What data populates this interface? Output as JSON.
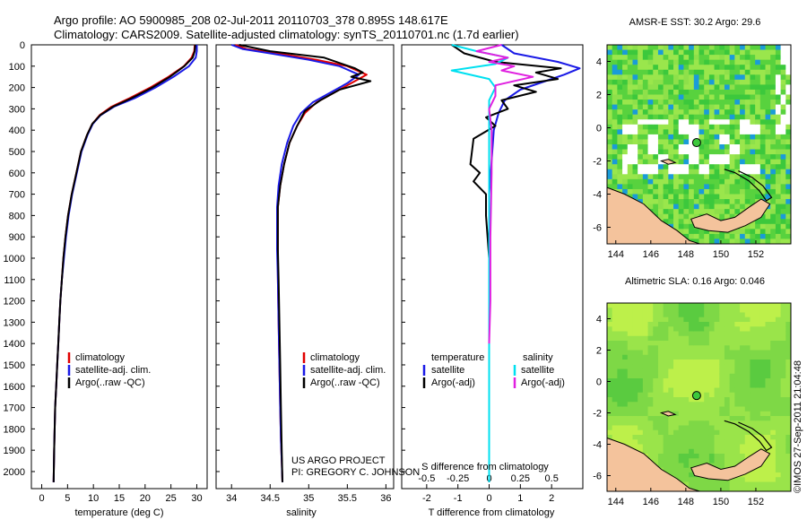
{
  "title": {
    "line1": "Argo profile: AO 5900985_208 02-Jul-2011 20110703_378 0.895S 148.617E",
    "line2": "Climatology: CARS2009. Satellite-adjusted climatology: synTS_20110701.nc (1.7d earlier)"
  },
  "colors": {
    "climatology": "#e00000",
    "satellite": "#1a1ae6",
    "argo": "#000000",
    "satellite_s": "#00e0f0",
    "argo_s": "#e020e0",
    "land": "#f4c39c"
  },
  "depth_axis": {
    "ylim": [
      2080,
      0
    ],
    "ticks": [
      "0",
      "100",
      "200",
      "300",
      "400",
      "500",
      "600",
      "700",
      "800",
      "900",
      "1000",
      "1100",
      "1200",
      "1300",
      "1400",
      "1500",
      "1600",
      "1700",
      "1800",
      "1900",
      "2000"
    ]
  },
  "chart_data": [
    {
      "type": "line",
      "xlabel": "temperature (deg C)",
      "xlim": [
        -2,
        32
      ],
      "xticks": [
        "0",
        "5",
        "10",
        "15",
        "20",
        "25",
        "30"
      ],
      "legend": [
        "climatology",
        "satellite-adj. clim.",
        "Argo(..raw -QC)"
      ],
      "series": [
        {
          "name": "climatology",
          "x": [
            29.6,
            29.5,
            29.0,
            27.5,
            24.5,
            21.0,
            17.0,
            13.5,
            11.2,
            9.8,
            8.8,
            7.6,
            6.7,
            5.8,
            5.1,
            4.6,
            4.2,
            3.9,
            3.6,
            3.4,
            3.2,
            3.0,
            2.8,
            2.6,
            2.4,
            2.3
          ],
          "y": [
            0,
            30,
            60,
            100,
            150,
            200,
            250,
            290,
            330,
            370,
            420,
            500,
            600,
            700,
            800,
            900,
            1000,
            1100,
            1200,
            1300,
            1400,
            1500,
            1600,
            1700,
            1900,
            2050
          ]
        },
        {
          "name": "satellite-adj. clim.",
          "x": [
            30.0,
            30.0,
            29.8,
            28.5,
            25.5,
            22.0,
            18.0,
            14.0,
            11.4,
            9.9,
            8.9,
            7.7,
            6.8,
            5.9,
            5.2,
            4.7,
            4.3,
            3.9,
            3.6,
            3.4,
            3.2,
            3.0,
            2.8,
            2.6,
            2.4,
            2.3
          ],
          "y": [
            0,
            30,
            60,
            100,
            150,
            200,
            250,
            290,
            330,
            370,
            420,
            500,
            600,
            700,
            800,
            900,
            1000,
            1100,
            1200,
            1300,
            1400,
            1500,
            1600,
            1700,
            1900,
            2050
          ]
        },
        {
          "name": "Argo(..raw -QC)",
          "x": [
            29.7,
            29.6,
            29.2,
            27.6,
            24.8,
            21.4,
            17.4,
            13.8,
            11.3,
            9.8,
            8.8,
            7.6,
            6.7,
            5.8,
            5.1,
            4.6,
            4.2,
            3.9,
            3.6,
            3.4,
            3.2,
            3.0,
            2.8,
            2.6,
            2.4,
            2.3
          ],
          "y": [
            0,
            30,
            60,
            100,
            150,
            200,
            250,
            290,
            330,
            370,
            420,
            500,
            600,
            700,
            800,
            900,
            1000,
            1100,
            1200,
            1300,
            1400,
            1500,
            1600,
            1700,
            1900,
            2050
          ]
        }
      ]
    },
    {
      "type": "line",
      "xlabel": "salinity",
      "xlim": [
        33.8,
        36.1
      ],
      "xticks": [
        "34",
        "34.5",
        "35",
        "35.5",
        "36"
      ],
      "legend": [
        "climatology",
        "satellite-adj. clim.",
        "Argo(..raw -QC)"
      ],
      "series": [
        {
          "name": "climatology",
          "x": [
            34.05,
            34.2,
            34.6,
            35.1,
            35.5,
            35.75,
            35.55,
            35.35,
            35.1,
            34.95,
            34.85,
            34.75,
            34.68,
            34.63,
            34.6,
            34.6,
            34.6,
            34.6,
            34.61,
            34.62,
            34.63,
            34.64,
            34.65,
            34.66
          ],
          "y": [
            0,
            20,
            40,
            70,
            100,
            140,
            180,
            220,
            270,
            320,
            380,
            460,
            560,
            660,
            760,
            860,
            960,
            1100,
            1300,
            1500,
            1700,
            1850,
            1950,
            2050
          ]
        },
        {
          "name": "satellite-adj. clim.",
          "x": [
            34.0,
            34.15,
            34.5,
            35.0,
            35.4,
            35.65,
            35.5,
            35.3,
            35.05,
            34.9,
            34.8,
            34.72,
            34.65,
            34.61,
            34.59,
            34.59,
            34.59,
            34.6,
            34.61,
            34.62,
            34.63,
            34.64,
            34.65,
            34.66
          ],
          "y": [
            0,
            20,
            40,
            70,
            100,
            140,
            180,
            220,
            270,
            320,
            380,
            460,
            560,
            660,
            760,
            860,
            960,
            1100,
            1300,
            1500,
            1700,
            1850,
            1950,
            2050
          ]
        },
        {
          "name": "Argo(..raw -QC)",
          "x": [
            34.1,
            34.5,
            35.2,
            35.6,
            35.7,
            35.55,
            35.8,
            35.4,
            35.15,
            34.95,
            34.85,
            34.75,
            34.68,
            34.63,
            34.6,
            34.6,
            34.6,
            34.61,
            34.62,
            34.63,
            34.64,
            34.65,
            34.66
          ],
          "y": [
            0,
            30,
            60,
            110,
            130,
            150,
            170,
            210,
            260,
            310,
            380,
            460,
            560,
            660,
            760,
            860,
            960,
            1100,
            1300,
            1500,
            1700,
            1900,
            2050
          ]
        }
      ]
    },
    {
      "type": "line",
      "xlabel": "T difference from climatology",
      "xlabel2": "S difference from climatology",
      "xlim": [
        -2.8,
        3.0
      ],
      "xticks": [
        "-2",
        "-1",
        "0",
        "1",
        "2"
      ],
      "xticks2": [
        "-0.5",
        "-0.25",
        "0",
        "0.25",
        "0.5"
      ],
      "legend": {
        "temperature_header": "temperature",
        "salinity_header": "salinity",
        "temperature_items": [
          "satellite",
          "Argo(-adj)"
        ],
        "salinity_items": [
          "satellite",
          "Argo(-adj)"
        ]
      },
      "series": [
        {
          "name": "temperature satellite",
          "x": [
            0.4,
            0.8,
            2.2,
            2.9,
            2.4,
            1.8,
            1.0,
            0.5,
            0.3,
            0.15,
            0.1,
            0.05,
            0.0,
            0.0,
            0.0,
            0.0,
            0.0,
            0.0,
            0.0,
            0.0
          ],
          "y": [
            0,
            40,
            80,
            110,
            140,
            170,
            210,
            260,
            320,
            400,
            500,
            600,
            700,
            800,
            1000,
            1200,
            1400,
            1600,
            1800,
            2050
          ]
        },
        {
          "name": "temperature Argo(-adj)",
          "x": [
            -1.2,
            -0.8,
            0.2,
            2.3,
            1.5,
            2.2,
            0.8,
            1.5,
            0.4,
            0.6,
            -0.1,
            0.2,
            -0.5,
            -0.6,
            -0.3,
            -0.5,
            -0.1,
            -0.1,
            0.0,
            0.0,
            0.0
          ],
          "y": [
            0,
            40,
            80,
            110,
            130,
            160,
            190,
            220,
            260,
            300,
            340,
            380,
            440,
            560,
            600,
            640,
            700,
            800,
            1000,
            1500,
            2050
          ]
        },
        {
          "name": "salinity satellite",
          "x": [
            -0.3,
            -0.1,
            0.15,
            0.05,
            -0.3,
            0.0,
            0.05,
            0.0,
            0.0,
            0.0,
            0.0,
            0.0,
            0.0,
            0.0
          ],
          "y": [
            0,
            30,
            60,
            90,
            120,
            160,
            200,
            260,
            320,
            400,
            600,
            1000,
            1500,
            2050
          ]
        },
        {
          "name": "salinity Argo(-adj)",
          "x": [
            0.1,
            -0.1,
            0.15,
            0.0,
            0.2,
            0.1,
            0.35,
            0.05,
            0.05,
            0.0,
            0.02,
            0.02,
            0.01,
            0.01,
            0.0
          ],
          "y": [
            0,
            30,
            60,
            80,
            100,
            120,
            150,
            190,
            240,
            300,
            400,
            600,
            900,
            1200,
            1400
          ]
        }
      ]
    }
  ],
  "maps": [
    {
      "title": "AMSR-E SST: 30.2 Argo: 29.6",
      "xticks": [
        "144",
        "146",
        "148",
        "150",
        "152"
      ],
      "yticks": [
        "4",
        "2",
        "0",
        "-2",
        "-4",
        "-6"
      ],
      "xlim": [
        143.5,
        154
      ],
      "ylim": [
        -7,
        5
      ],
      "argo_lon": 148.617,
      "argo_lat": -0.895
    },
    {
      "title": "Altimetric SLA: 0.16 Argo: 0.046",
      "xticks": [
        "144",
        "146",
        "148",
        "150",
        "152"
      ],
      "yticks": [
        "4",
        "2",
        "0",
        "-2",
        "-4",
        "-6"
      ],
      "xlim": [
        143.5,
        154
      ],
      "ylim": [
        -7,
        5
      ],
      "argo_lon": 148.617,
      "argo_lat": -0.895
    }
  ],
  "credits": {
    "line1": "US ARGO PROJECT",
    "line2": "PI: GREGORY C. JOHNSON"
  },
  "timestamp": "©IMOS 27-Sep-2011 21:04:48"
}
